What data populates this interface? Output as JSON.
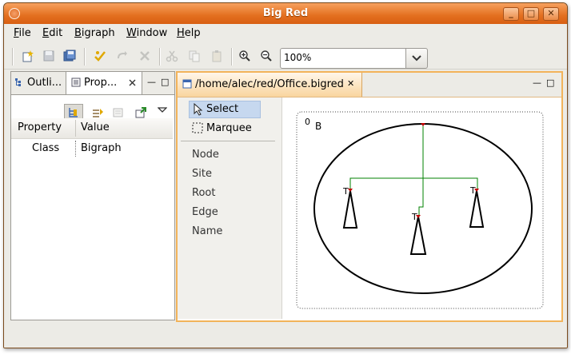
{
  "window": {
    "title": "Big Red"
  },
  "titlebar_buttons": {
    "minimize": "_",
    "maximize": "□",
    "close": "✕"
  },
  "menubar": {
    "items": [
      {
        "first": "F",
        "rest": "ile"
      },
      {
        "first": "E",
        "rest": "dit"
      },
      {
        "first": "B",
        "rest": "igraph"
      },
      {
        "first": "W",
        "rest": "indow"
      },
      {
        "first": "H",
        "rest": "elp"
      }
    ]
  },
  "toolbar": {
    "zoom_value": "100%"
  },
  "left_panel": {
    "tabs": [
      {
        "label": "Outli..."
      },
      {
        "label": "Prop..."
      }
    ],
    "min_label": "—",
    "max_label": "□",
    "table": {
      "columns": [
        "Property",
        "Value"
      ],
      "rows": [
        {
          "property": "Class",
          "value": "Bigraph"
        }
      ]
    }
  },
  "editor": {
    "tab_label": "/home/alec/red/Office.bigred",
    "close_label": "✕",
    "palette": {
      "tools": [
        {
          "label": "Select",
          "icon": "arrow-cursor-icon",
          "selected": true
        },
        {
          "label": "Marquee",
          "icon": "marquee-icon",
          "selected": false
        }
      ],
      "creation": [
        {
          "label": "Node"
        },
        {
          "label": "Site"
        },
        {
          "label": "Root"
        },
        {
          "label": "Edge"
        },
        {
          "label": "Name"
        }
      ]
    },
    "diagram": {
      "root_index": "0",
      "node_label": "B",
      "port_labels": [
        "T",
        "T",
        "T"
      ],
      "colors": {
        "edge": "#008000",
        "port": "#c00000"
      }
    }
  },
  "colors": {
    "title_orange": "#e36f1f",
    "focus_border": "#f2b35a"
  }
}
